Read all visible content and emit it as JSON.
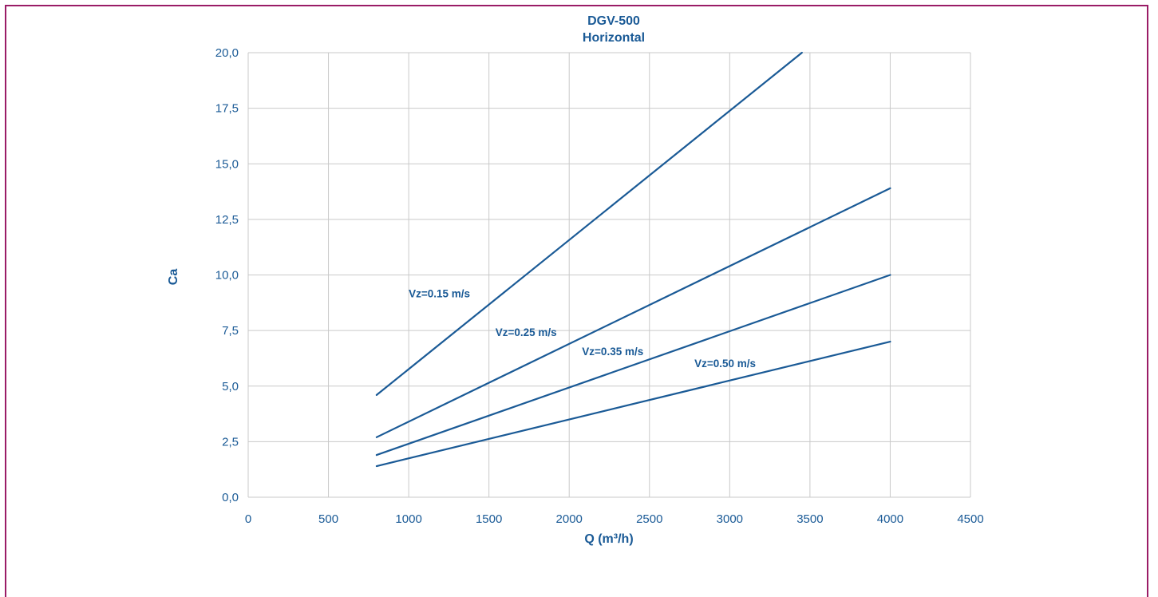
{
  "chart_data": {
    "type": "line",
    "title": "DGV-500",
    "subtitle": "Horizontal",
    "xlabel": "Q (m³/h)",
    "ylabel": "Ca",
    "xlim": [
      0,
      4500
    ],
    "ylim": [
      0,
      20
    ],
    "x_ticks": [
      0,
      500,
      1000,
      1500,
      2000,
      2500,
      3000,
      3500,
      4000,
      4500
    ],
    "x_tick_labels": [
      "0",
      "500",
      "1000",
      "1500",
      "2000",
      "2500",
      "3000",
      "3500",
      "4000",
      "4500"
    ],
    "y_ticks": [
      0,
      2.5,
      5,
      7.5,
      10,
      12.5,
      15,
      17.5,
      20
    ],
    "y_tick_labels": [
      "0,0",
      "2,5",
      "5,0",
      "7,5",
      "10,0",
      "12,5",
      "15,0",
      "17,5",
      "20,0"
    ],
    "grid": true,
    "line_color": "#1a5a96",
    "series": [
      {
        "name": "Vz=0.15 m/s",
        "x": [
          800,
          3450
        ],
        "y": [
          4.6,
          20.0
        ],
        "label_x": 1000,
        "label_y": 9.0
      },
      {
        "name": "Vz=0.25 m/s",
        "x": [
          800,
          4000
        ],
        "y": [
          2.7,
          13.9
        ],
        "label_x": 1540,
        "label_y": 7.25
      },
      {
        "name": "Vz=0.35 m/s",
        "x": [
          800,
          4000
        ],
        "y": [
          1.9,
          10.0
        ],
        "label_x": 2080,
        "label_y": 6.4
      },
      {
        "name": "Vz=0.50 m/s",
        "x": [
          800,
          4000
        ],
        "y": [
          1.4,
          7.0
        ],
        "label_x": 2780,
        "label_y": 5.85
      }
    ]
  }
}
